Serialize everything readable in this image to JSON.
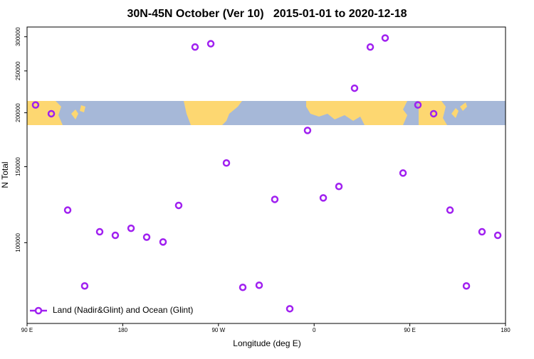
{
  "chart_data": {
    "type": "scatter",
    "title": "30N-45N October (Ver 10)   2015-01-01 to 2020-12-18",
    "x_label": "Longitude (deg E)",
    "y_label": "N Total",
    "xlim": [
      90,
      540
    ],
    "xticks": [
      {
        "value": 90,
        "label": "90 E"
      },
      {
        "value": 180,
        "label": "180"
      },
      {
        "value": 270,
        "label": "90 W"
      },
      {
        "value": 360,
        "label": "0"
      },
      {
        "value": 450,
        "label": "90 E"
      },
      {
        "value": 540,
        "label": "180"
      }
    ],
    "ylim": [
      65000,
      316000
    ],
    "yscale": "log",
    "yticks": [
      100000,
      150000,
      200000,
      250000,
      300000
    ],
    "legend": "bottom left",
    "series": [
      {
        "name": "Land (Nadir&Glint) and Ocean (Glint)",
        "color": "#a020f0",
        "x": [
          98,
          112.8,
          128.2,
          144.2,
          158.3,
          173,
          187.8,
          202.5,
          217.9,
          232.6,
          248,
          262.8,
          277.5,
          292.9,
          308.3,
          323,
          337.1,
          353.8,
          368.6,
          383.3,
          398,
          412.8,
          426.8,
          443.6,
          457.6,
          472.4,
          487.8,
          503.2,
          517.9,
          532.7
        ],
        "values": [
          208500,
          199000,
          119000,
          79400,
          106000,
          104000,
          108000,
          103000,
          100400,
          122000,
          284000,
          289000,
          153000,
          78800,
          79700,
          126000,
          70300,
          182000,
          127000,
          135000,
          228000,
          284000,
          298000,
          145000,
          208500,
          199000,
          119000,
          79400,
          106000,
          104000
        ]
      }
    ]
  }
}
